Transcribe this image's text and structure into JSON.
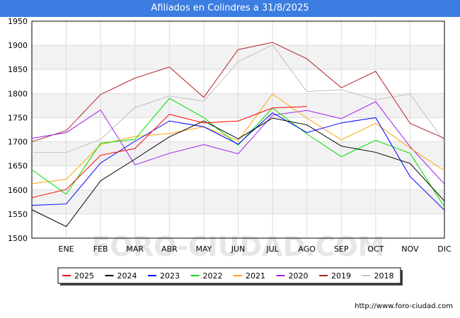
{
  "title": "Afiliados en Colindres a 31/8/2025",
  "footer_url": "http://www.foro-ciudad.com",
  "watermark": "FORO-CIUDAD.COM",
  "chart_data": {
    "type": "line",
    "title": "Afiliados en Colindres a 31/8/2025",
    "xlabel": "",
    "ylabel": "",
    "x_tick_labels": [
      "",
      "ENE",
      "FEB",
      "MAR",
      "ABR",
      "MAY",
      "JUN",
      "JUL",
      "AGO",
      "SEP",
      "OCT",
      "NOV",
      "DIC"
    ],
    "ylim": [
      1500,
      1950
    ],
    "y_ticks": [
      1500,
      1550,
      1600,
      1650,
      1700,
      1750,
      1800,
      1850,
      1900,
      1950
    ],
    "grid": true,
    "legend_position": "bottom",
    "series": [
      {
        "name": "2025",
        "color": "#ff0000",
        "values": [
          1584,
          1601,
          1672,
          1686,
          1757,
          1739,
          1743,
          1770,
          1773
        ]
      },
      {
        "name": "2024",
        "color": "#000000",
        "values": [
          1559,
          1524,
          1619,
          1664,
          1710,
          1743,
          1706,
          1749,
          1735,
          1691,
          1678,
          1655,
          1577
        ]
      },
      {
        "name": "2023",
        "color": "#0000ff",
        "values": [
          1568,
          1571,
          1656,
          1701,
          1743,
          1731,
          1695,
          1760,
          1719,
          1739,
          1750,
          1628,
          1558
        ]
      },
      {
        "name": "2022",
        "color": "#00dd00",
        "values": [
          1642,
          1591,
          1697,
          1705,
          1790,
          1750,
          1693,
          1770,
          1716,
          1669,
          1703,
          1676,
          1565
        ]
      },
      {
        "name": "2021",
        "color": "#ffa500",
        "values": [
          1613,
          1622,
          1694,
          1711,
          1717,
          1731,
          1702,
          1799,
          1749,
          1704,
          1738,
          1687,
          1640
        ]
      },
      {
        "name": "2020",
        "color": "#a020f0",
        "values": [
          1707,
          1719,
          1766,
          1652,
          1676,
          1694,
          1675,
          1755,
          1765,
          1748,
          1783,
          1690,
          1612
        ]
      },
      {
        "name": "2019",
        "color": "#b22222",
        "values": [
          1700,
          1723,
          1798,
          1832,
          1855,
          1792,
          1891,
          1906,
          1872,
          1812,
          1846,
          1738,
          1707
        ]
      },
      {
        "name": "2018",
        "color": "#c0c0c0",
        "values": [
          1678,
          1678,
          1705,
          1771,
          1795,
          1784,
          1866,
          1901,
          1804,
          1808,
          1787,
          1799,
          1700
        ]
      }
    ]
  }
}
